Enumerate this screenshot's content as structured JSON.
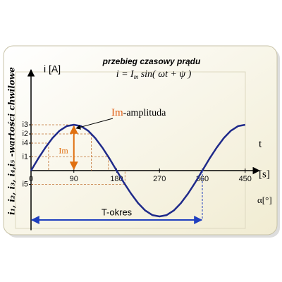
{
  "chart_data": {
    "type": "line",
    "title": "przebieg czasowy prądu",
    "formula": {
      "lhs": "i = I",
      "sub": "m",
      "rhs": " sin( ωt + ψ )"
    },
    "y_label": "i [A]",
    "x_label": "t",
    "x_unit": "[s]",
    "angle_label": "α[°]",
    "side_label": "i₁, i₂, i₃, i₄,i₅ -wartości chwilowe",
    "amplitude_label": "Im",
    "amplitude_text": "-amplituda",
    "arrow_label": "Im",
    "period_label": "T-okres",
    "x": [
      0,
      15,
      30,
      45,
      60,
      75,
      90,
      105,
      120,
      135,
      150,
      165,
      180,
      195,
      210,
      225,
      240,
      255,
      270,
      285,
      300,
      315,
      330,
      345,
      360,
      375,
      390,
      405,
      420,
      435,
      450
    ],
    "series": [
      {
        "name": "i",
        "color": "#1f2a8a",
        "values": [
          0,
          0.26,
          0.5,
          0.71,
          0.87,
          0.97,
          1,
          0.97,
          0.87,
          0.71,
          0.5,
          0.26,
          0,
          -0.26,
          -0.5,
          -0.71,
          -0.87,
          -0.97,
          -1,
          -0.97,
          -0.87,
          -0.71,
          -0.5,
          -0.26,
          0,
          0.26,
          0.5,
          0.71,
          0.87,
          0.97,
          1
        ]
      }
    ],
    "xlim": [
      0,
      480
    ],
    "xticks": [
      0,
      90,
      180,
      270,
      360,
      450
    ],
    "ylim": [
      -1.3,
      2.2
    ],
    "yticks": [
      {
        "value": 1,
        "label": "i3"
      },
      {
        "value": 0.8,
        "label": "i2"
      },
      {
        "value": 0.6,
        "label": "i4"
      },
      {
        "value": 0.3,
        "label": "i1"
      },
      {
        "value": -0.3,
        "label": "i5"
      }
    ]
  }
}
